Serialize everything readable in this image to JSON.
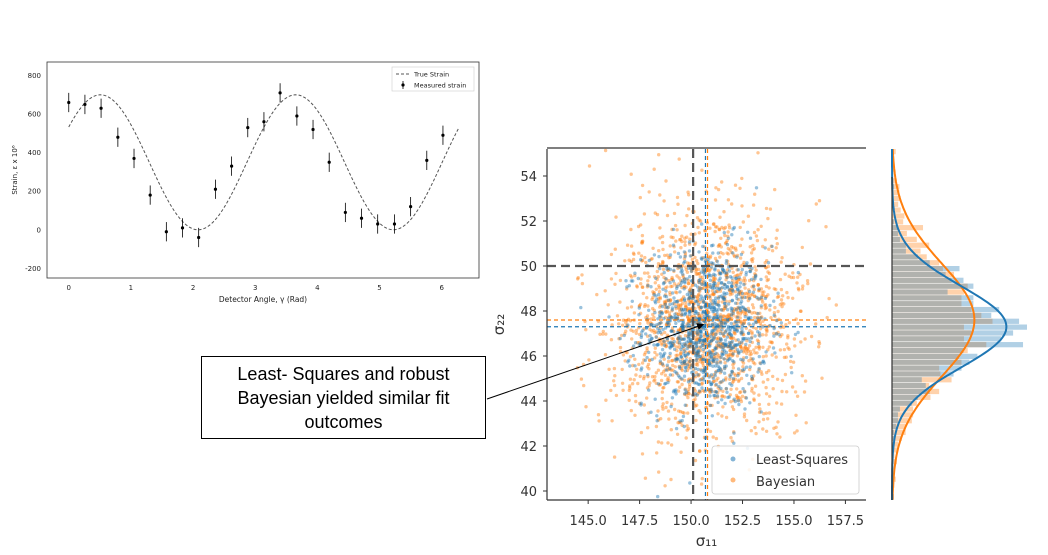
{
  "chart_data": [
    {
      "type": "line",
      "title": "",
      "xlabel": "Detector Angle, γ (Rad)",
      "ylabel": "Strain, ε x 10⁶",
      "xlim": [
        -0.35,
        6.6
      ],
      "ylim": [
        -250,
        870
      ],
      "xticks": [
        0,
        1,
        2,
        3,
        4,
        5,
        6
      ],
      "yticks": [
        -200,
        0,
        200,
        400,
        600,
        800
      ],
      "grid": false,
      "legend_position": "top-right",
      "series": [
        {
          "name": "True Strain",
          "style": "dashed",
          "color": "#555555",
          "model": {
            "offset": 350,
            "amplitude": 350,
            "frequency": 2,
            "phase": -1.02
          },
          "x_range": [
            0,
            6.28
          ]
        },
        {
          "name": "Measured strain",
          "style": "points-with-errorbars",
          "color": "#000000",
          "error": 50,
          "x": [
            0.0,
            0.26,
            0.52,
            0.79,
            1.05,
            1.31,
            1.57,
            1.83,
            2.09,
            2.36,
            2.62,
            2.88,
            3.14,
            3.4,
            3.67,
            3.93,
            4.19,
            4.45,
            4.71,
            4.97,
            5.24,
            5.5,
            5.76,
            6.02
          ],
          "y": [
            660,
            650,
            630,
            480,
            370,
            180,
            -10,
            10,
            -40,
            210,
            330,
            530,
            560,
            710,
            590,
            520,
            350,
            90,
            60,
            30,
            30,
            120,
            360,
            490
          ]
        }
      ]
    },
    {
      "type": "scatter",
      "title": "",
      "xlabel": "σ₁₁",
      "ylabel": "σ₂₂",
      "xlim": [
        143,
        158.5
      ],
      "ylim": [
        39.6,
        55.2
      ],
      "xticks": [
        "145.0",
        "147.5",
        "150.0",
        "152.5",
        "155.0",
        "157.5"
      ],
      "yticks": [
        "40",
        "42",
        "44",
        "46",
        "48",
        "50",
        "52",
        "54"
      ],
      "grid": false,
      "legend_position": "bottom-right",
      "series": [
        {
          "name": "Least-Squares",
          "color": "#1f77b4",
          "mean": [
            150.7,
            47.3
          ],
          "std": [
            1.5,
            1.8
          ],
          "n": 1000
        },
        {
          "name": "Bayesian",
          "color": "#ff7f0e",
          "mean": [
            150.8,
            47.6
          ],
          "std": [
            2.3,
            2.5
          ],
          "n": 1600
        }
      ],
      "reference_lines": [
        {
          "axis": "x",
          "value": 150.1,
          "color": "#555555",
          "style": "long-dash"
        },
        {
          "axis": "y",
          "value": 50.0,
          "color": "#555555",
          "style": "long-dash"
        },
        {
          "axis": "x",
          "value": 150.7,
          "color": "#1f77b4",
          "style": "dashed"
        },
        {
          "axis": "x",
          "value": 150.8,
          "color": "#ff7f0e",
          "style": "dashed"
        },
        {
          "axis": "y",
          "value": 47.3,
          "color": "#1f77b4",
          "style": "dashed"
        },
        {
          "axis": "y",
          "value": 47.6,
          "color": "#ff7f0e",
          "style": "dashed"
        }
      ],
      "marginals": {
        "top": "histogram+kde of σ₁₁",
        "right": "histogram+kde of σ₂₂"
      }
    }
  ],
  "annotation": {
    "text": "Least- Squares and robust Bayesian yielded similar fit outcomes",
    "points_to": [
      150.7,
      47.4
    ]
  }
}
